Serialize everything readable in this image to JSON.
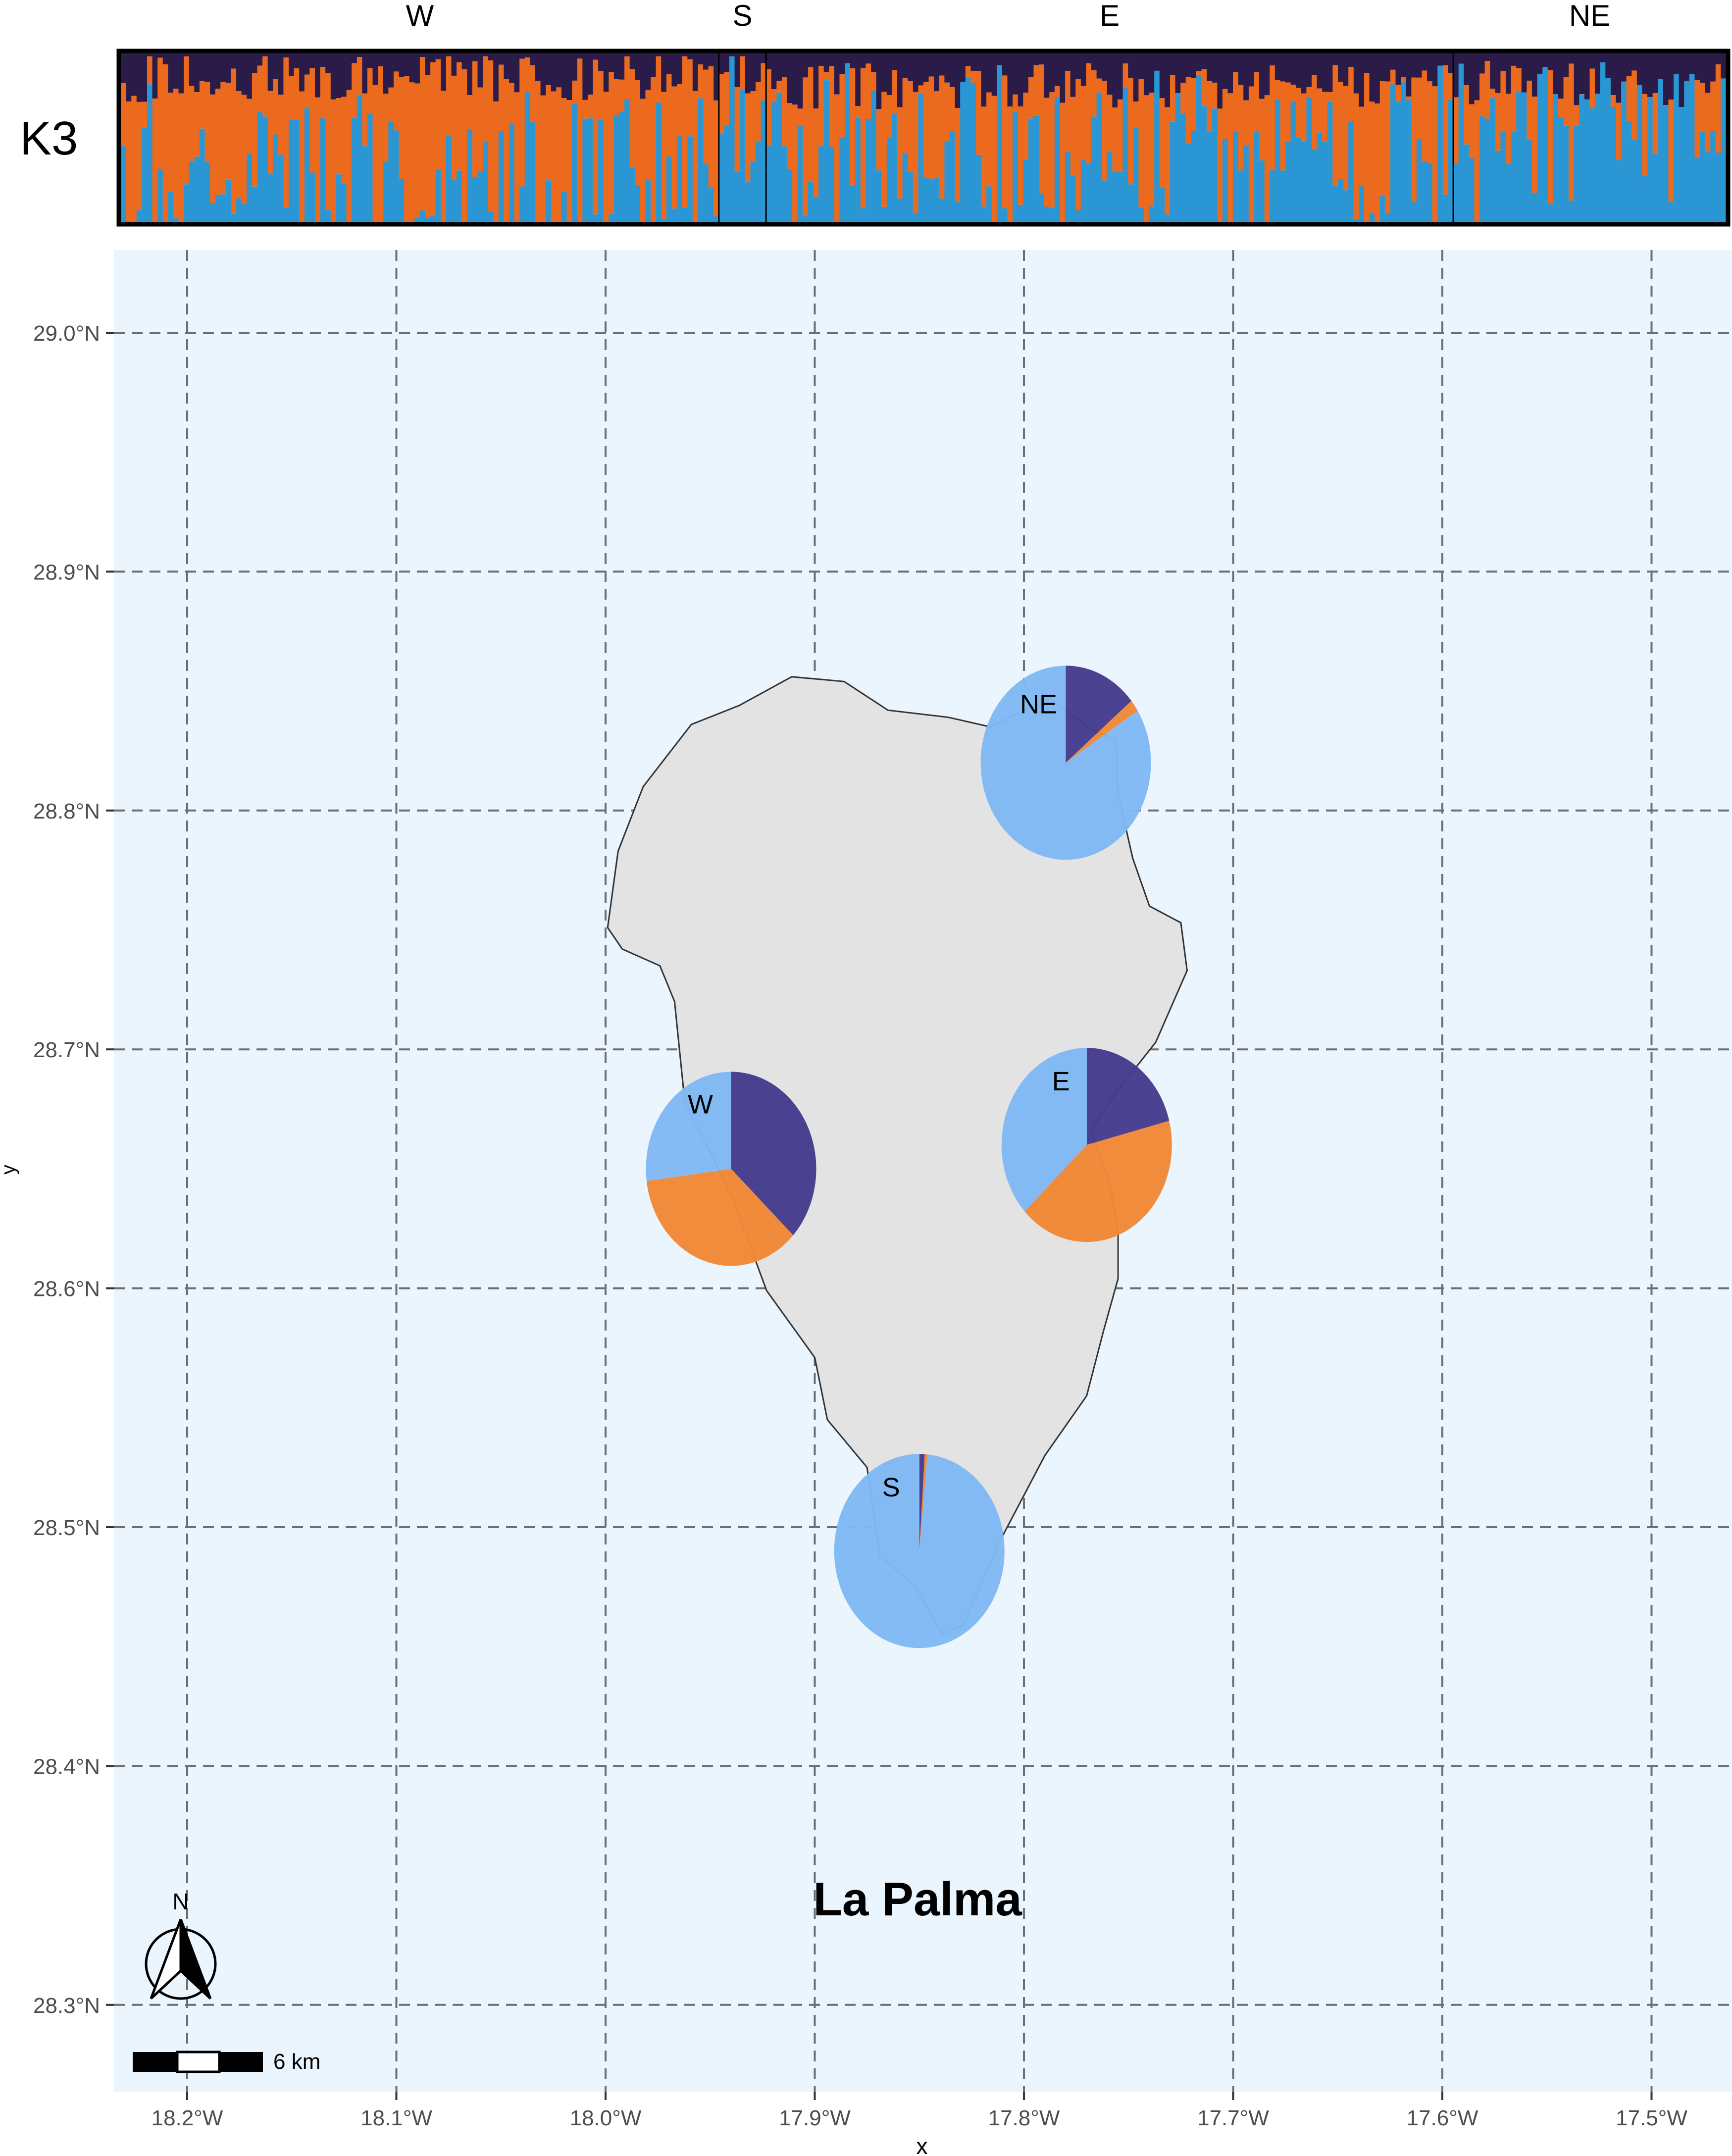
{
  "structure_plot": {
    "panel_label": "K3",
    "groups": [
      "W",
      "S",
      "E",
      "NE"
    ],
    "individuals_per_group": [
      114,
      9,
      131,
      52
    ],
    "cluster_colors": {
      "dark": "#2b1b48",
      "orange": "#eb6a1e",
      "blue": "#2a96d4"
    }
  },
  "map": {
    "island_label": "La Palma",
    "x_axis_title": "x",
    "y_axis_title": "y",
    "x_ticks": [
      "18.2°W",
      "18.1°W",
      "18.0°W",
      "17.9°W",
      "17.8°W",
      "17.7°W",
      "17.6°W",
      "17.5°W"
    ],
    "y_ticks": [
      "29.0°N",
      "28.9°N",
      "28.8°N",
      "28.7°N",
      "28.6°N",
      "28.5°N",
      "28.4°N",
      "28.3°N"
    ],
    "x_range": [
      -18.235,
      -17.465
    ],
    "y_range": [
      28.265,
      29.035
    ],
    "background_color": "#ebf5fd",
    "island_fill": "#e3e3e3",
    "north_arrow_label": "N",
    "scale_bar_label": "6 km",
    "pie_colors": {
      "dark": "#453d8d",
      "orange": "#f28837",
      "blue": "#80b9f5"
    },
    "coastline": [
      [
        -17.886,
        28.854
      ],
      [
        -17.865,
        28.842
      ],
      [
        -17.836,
        28.839
      ],
      [
        -17.816,
        28.835
      ],
      [
        -17.788,
        28.847
      ],
      [
        -17.766,
        28.833
      ],
      [
        -17.756,
        28.83
      ],
      [
        -17.755,
        28.807
      ],
      [
        -17.748,
        28.78
      ],
      [
        -17.74,
        28.76
      ],
      [
        -17.725,
        28.753
      ],
      [
        -17.722,
        28.733
      ],
      [
        -17.737,
        28.703
      ],
      [
        -17.755,
        28.683
      ],
      [
        -17.768,
        28.666
      ],
      [
        -17.759,
        28.644
      ],
      [
        -17.755,
        28.624
      ],
      [
        -17.755,
        28.604
      ],
      [
        -17.762,
        28.582
      ],
      [
        -17.77,
        28.555
      ],
      [
        -17.79,
        28.53
      ],
      [
        -17.811,
        28.495
      ],
      [
        -17.829,
        28.459
      ],
      [
        -17.839,
        28.455
      ],
      [
        -17.852,
        28.475
      ],
      [
        -17.869,
        28.488
      ],
      [
        -17.875,
        28.525
      ],
      [
        -17.894,
        28.545
      ],
      [
        -17.9,
        28.571
      ],
      [
        -17.923,
        28.599
      ],
      [
        -17.939,
        28.637
      ],
      [
        -17.95,
        28.657
      ],
      [
        -17.962,
        28.677
      ],
      [
        -17.967,
        28.72
      ],
      [
        -17.974,
        28.735
      ],
      [
        -17.992,
        28.742
      ],
      [
        -17.999,
        28.751
      ],
      [
        -17.994,
        28.783
      ],
      [
        -17.982,
        28.81
      ],
      [
        -17.959,
        28.836
      ],
      [
        -17.936,
        28.844
      ],
      [
        -17.911,
        28.856
      ]
    ]
  },
  "chart_data": {
    "type": "pie",
    "series_order": [
      "dark",
      "orange",
      "blue"
    ],
    "pies": [
      {
        "label": "NE",
        "lon": -17.78,
        "lat": 28.82,
        "values": [
          0.14,
          0.02,
          0.84
        ]
      },
      {
        "label": "W",
        "lon": -17.94,
        "lat": 28.65,
        "values": [
          0.37,
          0.36,
          0.27
        ]
      },
      {
        "label": "E",
        "lon": -17.77,
        "lat": 28.66,
        "values": [
          0.21,
          0.42,
          0.37
        ]
      },
      {
        "label": "S",
        "lon": -17.85,
        "lat": 28.49,
        "values": [
          0.01,
          0.005,
          0.985
        ]
      }
    ]
  }
}
